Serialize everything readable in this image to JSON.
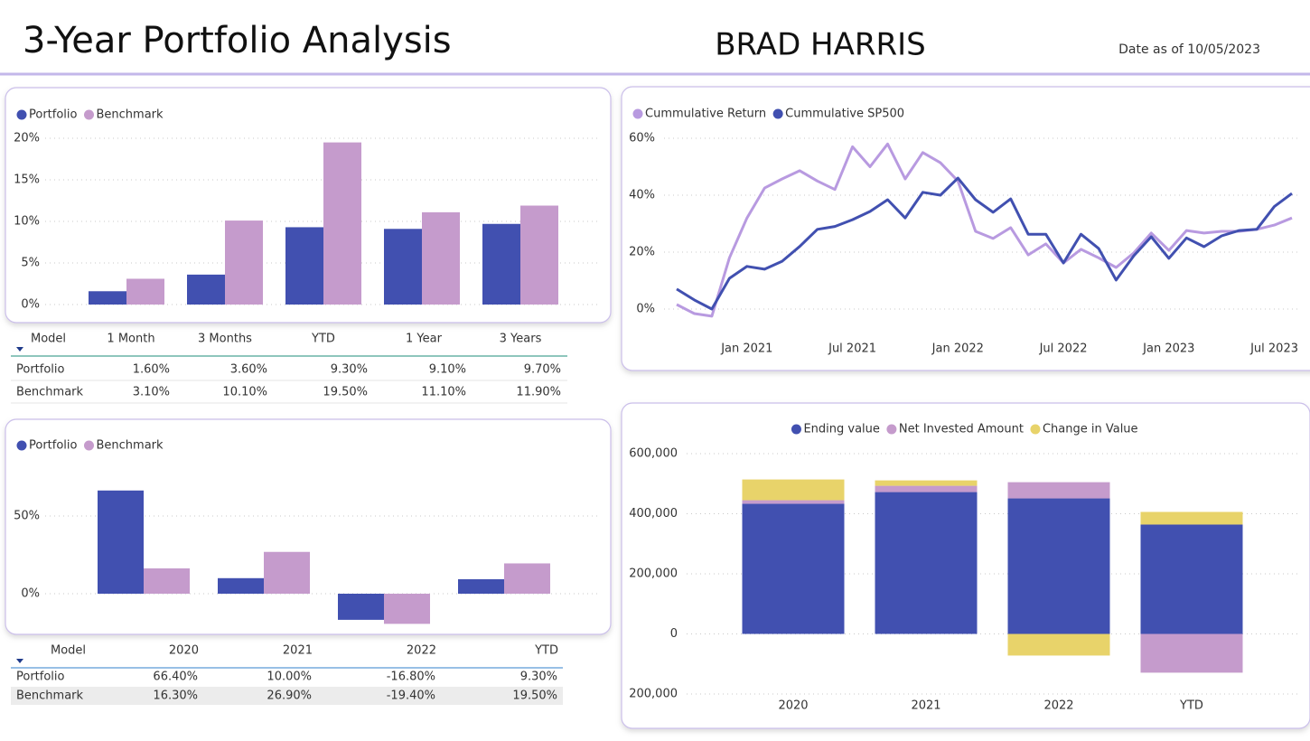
{
  "header": {
    "title": "3-Year Portfolio Analysis",
    "name": "BRAD HARRIS",
    "date": "Date as of 10/05/2023"
  },
  "chart_data": [
    {
      "type": "bar",
      "legend": "top-left",
      "grid": true,
      "series": [
        {
          "name": "Portfolio",
          "color": "#4150b0",
          "values": [
            1.6,
            3.6,
            9.3,
            9.1,
            9.7
          ]
        },
        {
          "name": "Benchmark",
          "color": "#c59bcc",
          "values": [
            3.1,
            10.1,
            19.5,
            11.1,
            11.9
          ]
        }
      ],
      "ylim": [
        0,
        20
      ],
      "yticks": [
        {
          "value": 0,
          "label": "0%"
        },
        {
          "value": 5,
          "label": "5%"
        },
        {
          "value": 10,
          "label": "10%"
        },
        {
          "value": 15,
          "label": "15%"
        },
        {
          "value": 20,
          "label": "20%"
        }
      ]
    },
    {
      "type": "line",
      "legend": "top-left",
      "grid": true,
      "x": [
        "2020-09",
        "2020-10",
        "2020-11",
        "2020-12",
        "2021-01",
        "2021-02",
        "2021-03",
        "2021-04",
        "2021-05",
        "2021-06",
        "2021-07",
        "2021-08",
        "2021-09",
        "2021-10",
        "2021-11",
        "2021-12",
        "2022-01",
        "2022-02",
        "2022-03",
        "2022-04",
        "2022-05",
        "2022-06",
        "2022-07",
        "2022-08",
        "2022-09",
        "2022-10",
        "2022-11",
        "2022-12",
        "2023-01",
        "2023-02",
        "2023-03",
        "2023-04",
        "2023-05",
        "2023-06",
        "2023-07",
        "2023-08"
      ],
      "series": [
        {
          "name": "Cummulative Return",
          "color": "#b89ae0",
          "values": [
            1.6,
            -1.6,
            -2.5,
            18,
            32,
            42.5,
            45.7,
            48.6,
            45,
            42,
            57,
            50,
            58,
            45.7,
            55,
            51.4,
            45,
            27.3,
            24.8,
            28.6,
            19,
            22.9,
            16.2,
            21,
            18,
            14.6,
            19.7,
            26.7,
            20.6,
            27.6,
            26.7,
            27.3,
            27.3,
            28,
            29.5,
            32
          ]
        },
        {
          "name": "Cummulative SP500",
          "color": "#4150b0",
          "values": [
            7,
            3.2,
            0,
            10.8,
            15,
            14,
            16.8,
            22,
            28,
            29,
            31.4,
            34.3,
            38.4,
            32,
            41,
            40,
            46,
            38.4,
            34,
            38.7,
            26.3,
            26.3,
            16.2,
            26.3,
            21.3,
            10.2,
            18.7,
            25.4,
            17.8,
            25,
            21.9,
            25.7,
            27.6,
            28,
            36,
            40.6
          ]
        }
      ],
      "xlim": [
        "2020-09",
        "2023-08"
      ],
      "xticks": [
        {
          "value": "2021-01",
          "label": "Jan 2021"
        },
        {
          "value": "2021-07",
          "label": "Jul 2021"
        },
        {
          "value": "2022-01",
          "label": "Jan 2022"
        },
        {
          "value": "2022-07",
          "label": "Jul 2022"
        },
        {
          "value": "2023-01",
          "label": "Jan 2023"
        },
        {
          "value": "2023-07",
          "label": "Jul 2023"
        }
      ],
      "ylim": [
        -5,
        60
      ],
      "yticks": [
        {
          "value": 0,
          "label": "0%"
        },
        {
          "value": 20,
          "label": "20%"
        },
        {
          "value": 40,
          "label": "40%"
        },
        {
          "value": 60,
          "label": "60%"
        }
      ]
    },
    {
      "type": "bar",
      "legend": "top-left",
      "grid": true,
      "series": [
        {
          "name": "Portfolio",
          "color": "#4150b0",
          "values": [
            66.4,
            10,
            -16.8,
            9.3
          ]
        },
        {
          "name": "Benchmark",
          "color": "#c59bcc",
          "values": [
            16.3,
            26.9,
            -19.4,
            19.5
          ]
        }
      ],
      "ylim": [
        -25,
        75
      ],
      "yticks": [
        {
          "value": 0,
          "label": "0%"
        },
        {
          "value": 50,
          "label": "50%"
        }
      ]
    },
    {
      "type": "stacked-bar",
      "legend": "top-center",
      "grid": true,
      "categories": [
        "2020",
        "2021",
        "2022",
        "YTD"
      ],
      "series": [
        {
          "name": "Ending value",
          "color": "#4150b0",
          "values": [
            433000,
            472000,
            451000,
            364000
          ]
        },
        {
          "name": "Net Invested Amount",
          "color": "#c59bcc",
          "values": [
            12000,
            21000,
            54000,
            -129000
          ]
        },
        {
          "name": "Change in Value",
          "color": "#e8d36a",
          "values": [
            69000,
            18000,
            -72000,
            42000
          ]
        }
      ],
      "ylim": [
        -200000,
        600000
      ],
      "yticks": [
        {
          "value": -200000,
          "label": "200,000"
        },
        {
          "value": 0,
          "label": "0"
        },
        {
          "value": 200000,
          "label": "200,000"
        },
        {
          "value": 400000,
          "label": "400,000"
        },
        {
          "value": 600000,
          "label": "600,000"
        }
      ]
    }
  ],
  "tables": [
    {
      "columns": [
        "Model",
        "1 Month",
        "3 Months",
        "YTD",
        "1 Year",
        "3 Years"
      ],
      "rows": [
        [
          "Portfolio",
          "1.60%",
          "3.60%",
          "9.30%",
          "9.10%",
          "9.70%"
        ],
        [
          "Benchmark",
          "3.10%",
          "10.10%",
          "19.50%",
          "11.10%",
          "11.90%"
        ]
      ]
    },
    {
      "columns": [
        "Model",
        "2020",
        "2021",
        "2022",
        "YTD"
      ],
      "rows": [
        [
          "Portfolio",
          "66.40%",
          "10.00%",
          "-16.80%",
          "9.30%"
        ],
        [
          "Benchmark",
          "16.30%",
          "26.90%",
          "-19.40%",
          "19.50%"
        ]
      ]
    }
  ]
}
